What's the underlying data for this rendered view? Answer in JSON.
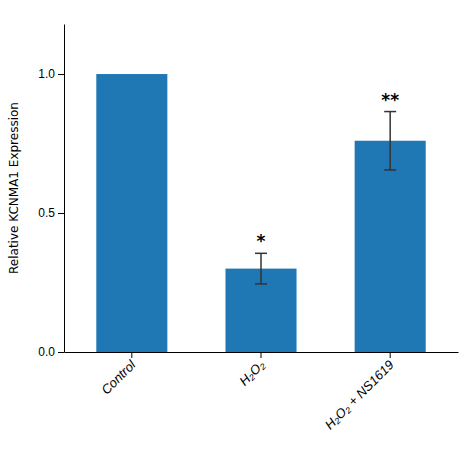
{
  "chart_data": {
    "type": "bar",
    "categories": [
      "Control",
      "H₂O₂",
      "H₂O₂ + NS1619"
    ],
    "values": [
      1.0,
      0.3,
      0.76
    ],
    "errors": [
      0.0,
      0.055,
      0.105
    ],
    "significance": [
      null,
      "*",
      "**"
    ],
    "ylabel": "Relative KCNMA1 Expression",
    "ylim": [
      0.0,
      1.18
    ],
    "yticks": [
      {
        "value": 0.0,
        "label": "0.0"
      },
      {
        "value": 0.5,
        "label": "0.5"
      },
      {
        "value": 1.0,
        "label": "1.0"
      }
    ],
    "color": "#1f77b4",
    "grid": false
  }
}
